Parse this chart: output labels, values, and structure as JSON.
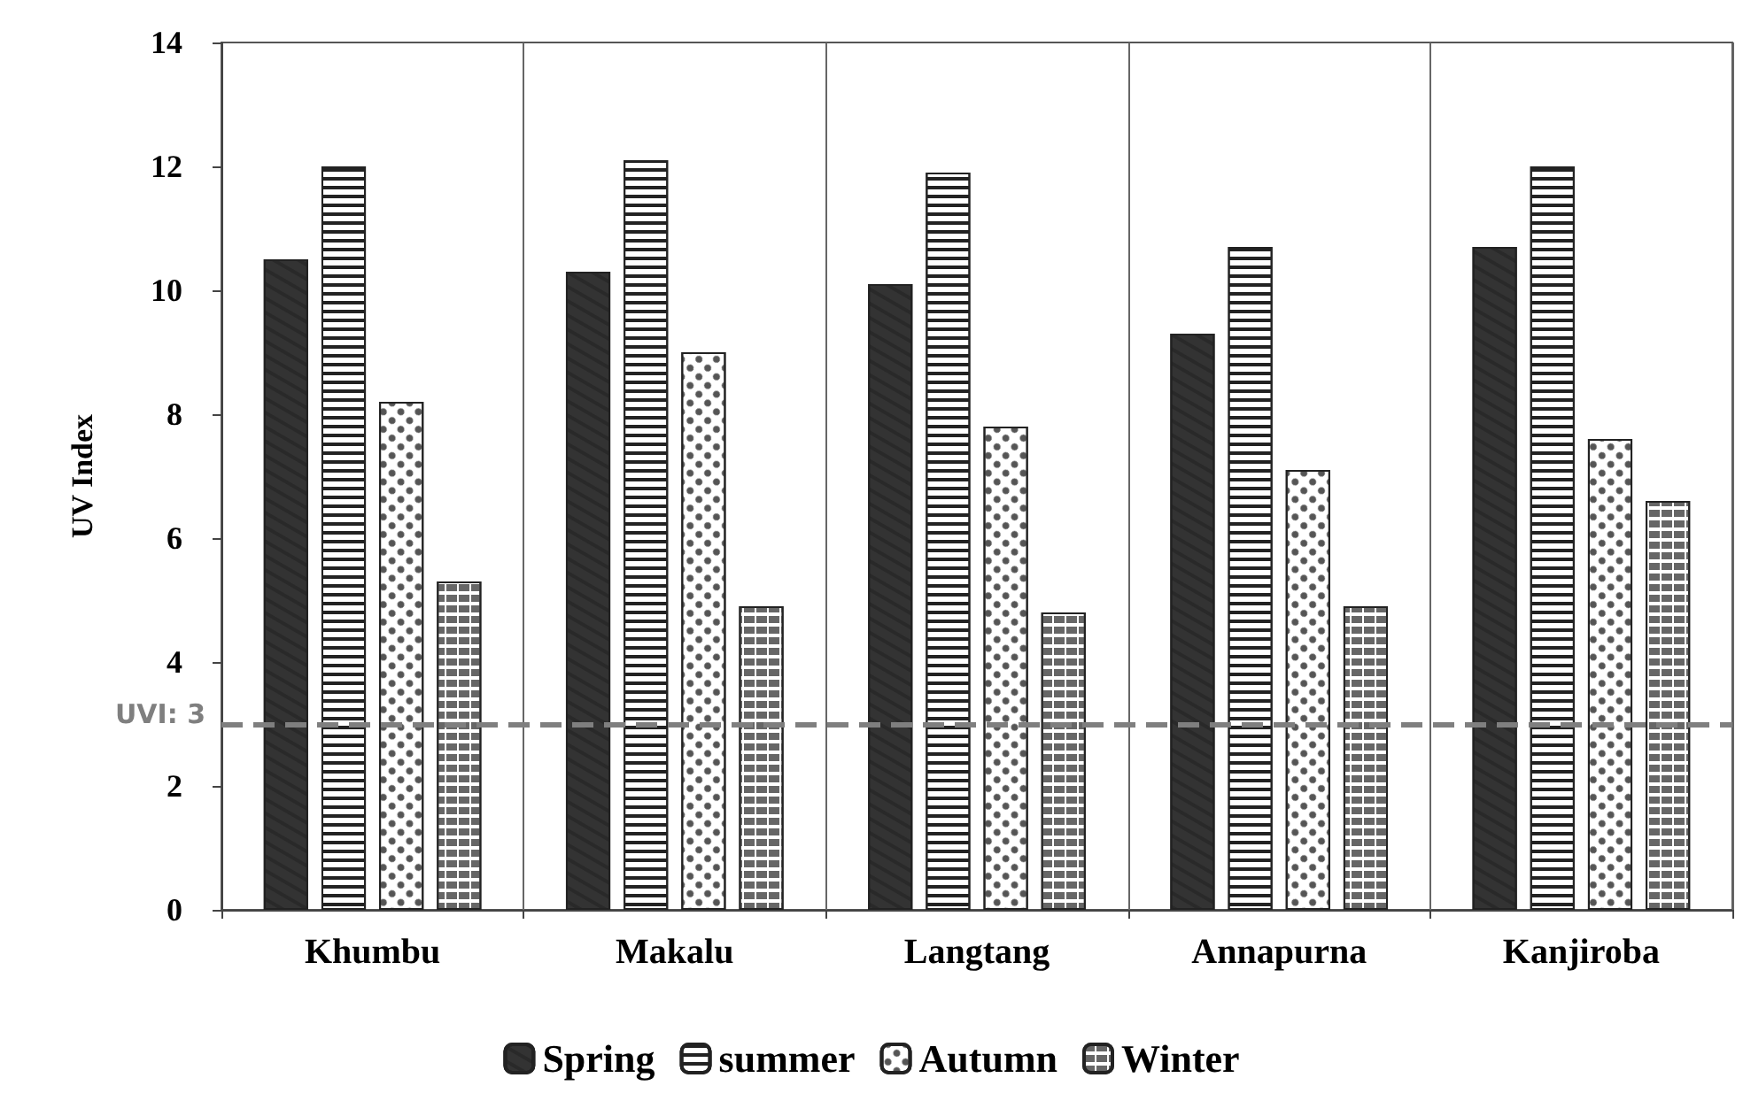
{
  "chart_data": {
    "type": "bar",
    "ylabel": "UV Index",
    "categories": [
      "Khumbu",
      "Makalu",
      "Langtang",
      "Annapurna",
      "Kanjiroba"
    ],
    "series": [
      {
        "name": "Spring",
        "color": "#333333",
        "values": [
          10.5,
          10.3,
          10.1,
          9.3,
          10.7
        ]
      },
      {
        "name": "summer",
        "color": "#ffffff",
        "values": [
          12.0,
          12.1,
          11.9,
          10.7,
          12.0
        ]
      },
      {
        "name": "Autumn",
        "color": "#ffffff",
        "values": [
          8.2,
          9.0,
          7.8,
          7.1,
          7.6
        ]
      },
      {
        "name": "Winter",
        "color": "#ffffff",
        "values": [
          5.3,
          4.9,
          4.8,
          4.9,
          6.6
        ]
      }
    ],
    "ylim": [
      0,
      14
    ],
    "yticks": [
      0,
      2,
      4,
      6,
      8,
      10,
      12,
      14
    ],
    "grid": "x",
    "legend": "bottom",
    "ref_lines": [
      {
        "axis": "y",
        "value": 3,
        "label": "UVI: 3",
        "color": "#7f7f7f",
        "line_style": "dashed"
      }
    ]
  }
}
